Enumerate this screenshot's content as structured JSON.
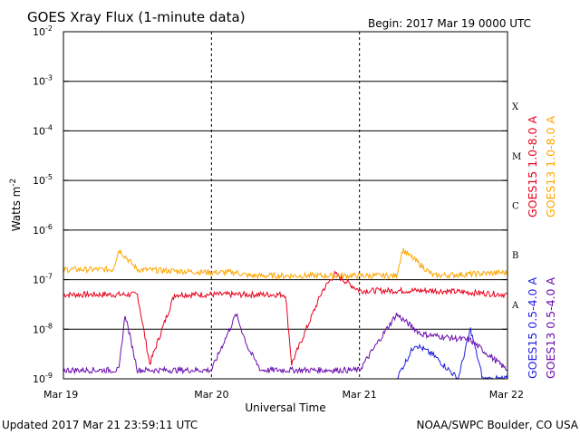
{
  "header": {
    "title": "GOES Xray Flux (1-minute data)",
    "begin": "Begin:  2017 Mar 19 0000 UTC"
  },
  "footer": {
    "updated": "Updated 2017 Mar 21 23:59:11 UTC",
    "credit": "NOAA/SWPC Boulder, CO USA"
  },
  "chart_data": {
    "type": "line",
    "title": "GOES Xray Flux (1-minute data)",
    "xlabel": "Universal Time",
    "ylabel": "Watts m",
    "ylabel_sup": "-2",
    "yscale": "log",
    "ylim": [
      1e-09,
      0.01
    ],
    "xlim_days": [
      0,
      3
    ],
    "grid": true,
    "x_ticks": [
      "Mar 19",
      "Mar 20",
      "Mar 21",
      "Mar 22"
    ],
    "y_ticks": [
      {
        "base": "10",
        "exp": "-9"
      },
      {
        "base": "10",
        "exp": "-8"
      },
      {
        "base": "10",
        "exp": "-7"
      },
      {
        "base": "10",
        "exp": "-6"
      },
      {
        "base": "10",
        "exp": "-5"
      },
      {
        "base": "10",
        "exp": "-4"
      },
      {
        "base": "10",
        "exp": "-3"
      },
      {
        "base": "10",
        "exp": "-2"
      }
    ],
    "flare_classes": [
      "A",
      "B",
      "C",
      "M",
      "X"
    ],
    "legend": {
      "placement": "right",
      "entries": [
        {
          "label": "GOES15 1.0-8.0 A",
          "color": "#e8001c"
        },
        {
          "label": "GOES13 1.0-8.0 A",
          "color": "#ffa500"
        },
        {
          "label": "GOES15 0.5-4.0 A",
          "color": "#1f1fe0"
        },
        {
          "label": "GOES13 0.5-4.0 A",
          "color": "#6a0dad"
        }
      ]
    },
    "series": [
      {
        "name": "GOES15 1.0-8.0 A",
        "color": "#e8001c",
        "x": [
          "2017-03-19 00:00",
          "2017-03-19 06:00",
          "2017-03-19 12:00",
          "2017-03-19 14:00",
          "2017-03-19 18:00",
          "2017-03-20 00:00",
          "2017-03-20 12:00",
          "2017-03-20 13:00",
          "2017-03-20 18:00",
          "2017-03-20 20:00",
          "2017-03-21 00:00",
          "2017-03-21 12:00",
          "2017-03-21 18:00",
          "2017-03-22 00:00"
        ],
        "y": [
          5e-08,
          5e-08,
          5e-08,
          2e-09,
          5e-08,
          5e-08,
          5e-08,
          2e-09,
          6e-08,
          1.3e-07,
          6e-08,
          6e-08,
          5.5e-08,
          5e-08
        ]
      },
      {
        "name": "GOES13 1.0-8.0 A",
        "color": "#ffa500",
        "x": [
          "2017-03-19 00:00",
          "2017-03-19 08:00",
          "2017-03-19 09:00",
          "2017-03-19 12:00",
          "2017-03-20 00:00",
          "2017-03-20 04:00",
          "2017-03-20 06:00",
          "2017-03-20 12:00",
          "2017-03-21 00:00",
          "2017-03-21 06:00",
          "2017-03-21 07:00",
          "2017-03-21 12:00",
          "2017-03-22 00:00"
        ],
        "y": [
          1.6e-07,
          1.6e-07,
          4e-07,
          1.6e-07,
          1.4e-07,
          1.4e-07,
          1.2e-07,
          1.2e-07,
          1.2e-07,
          1.2e-07,
          4e-07,
          1.2e-07,
          1.4e-07
        ]
      },
      {
        "name": "GOES15 0.5-4.0 A",
        "color": "#1f1fe0",
        "x": [
          "2017-03-21 06:00",
          "2017-03-21 09:00",
          "2017-03-21 12:00",
          "2017-03-21 16:00",
          "2017-03-21 18:00",
          "2017-03-21 20:00",
          "2017-03-22 00:00"
        ],
        "y": [
          1e-09,
          5e-09,
          3e-09,
          1e-09,
          1e-08,
          1e-09,
          1e-09
        ]
      },
      {
        "name": "GOES13 0.5-4.0 A",
        "color": "#6a0dad",
        "x": [
          "2017-03-19 00:00",
          "2017-03-19 09:00",
          "2017-03-19 10:00",
          "2017-03-19 12:00",
          "2017-03-20 00:00",
          "2017-03-20 04:00",
          "2017-03-20 06:00",
          "2017-03-20 08:00",
          "2017-03-21 00:00",
          "2017-03-21 06:00",
          "2017-03-21 10:00",
          "2017-03-21 18:00",
          "2017-03-22 00:00"
        ],
        "y": [
          1.5e-09,
          1.5e-09,
          2e-08,
          1.5e-09,
          1.5e-09,
          2e-08,
          4e-09,
          1.5e-09,
          1.5e-09,
          2e-08,
          8e-09,
          6e-09,
          1.5e-09
        ]
      }
    ]
  }
}
